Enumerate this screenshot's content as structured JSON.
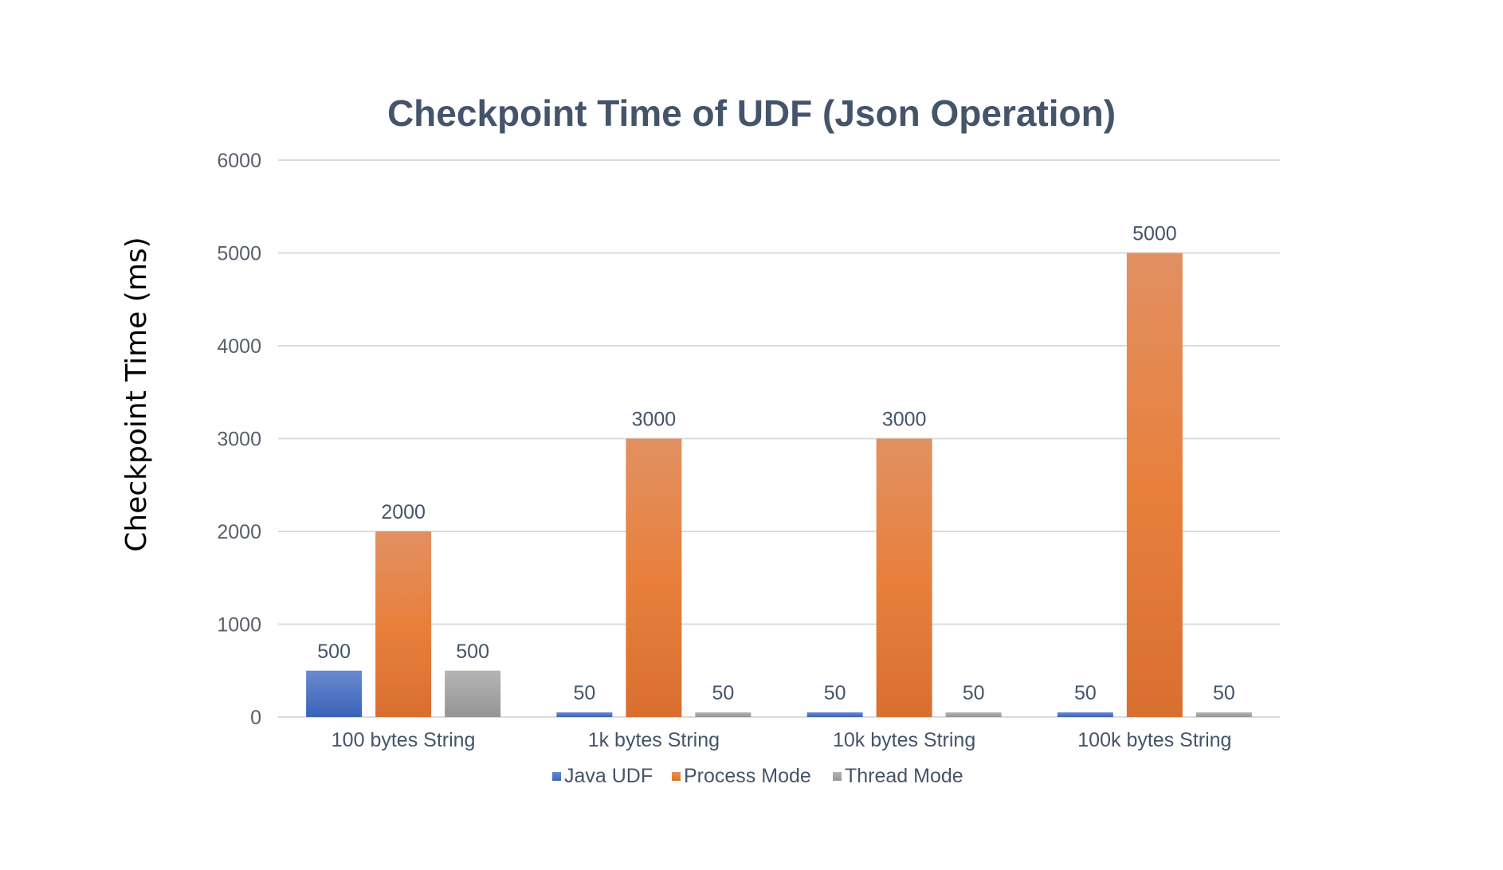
{
  "chart_data": {
    "type": "bar",
    "title": "Checkpoint Time of UDF (Json Operation)",
    "xlabel": "",
    "ylabel": "Checkpoint Time (ms)",
    "ylim": [
      0,
      6000
    ],
    "yticks": [
      0,
      1000,
      2000,
      3000,
      4000,
      5000,
      6000
    ],
    "grid": true,
    "legend_position": "bottom",
    "categories": [
      "100 bytes String",
      "1k bytes String",
      "10k bytes String",
      "100k bytes String"
    ],
    "series": [
      {
        "name": "Java UDF",
        "color": "#4472c4",
        "values": [
          500,
          50,
          50,
          50
        ],
        "labels": [
          "500",
          "50",
          "50",
          "50"
        ]
      },
      {
        "name": "Process Mode",
        "color": "#ed7d31",
        "values": [
          2000,
          3000,
          3000,
          5000
        ],
        "labels": [
          "2000",
          "3000",
          "3000",
          "5000"
        ]
      },
      {
        "name": "Thread Mode",
        "color": "#a5a5a5",
        "values": [
          500,
          50,
          50,
          50
        ],
        "labels": [
          "500",
          "50",
          "50",
          "50"
        ]
      }
    ]
  }
}
